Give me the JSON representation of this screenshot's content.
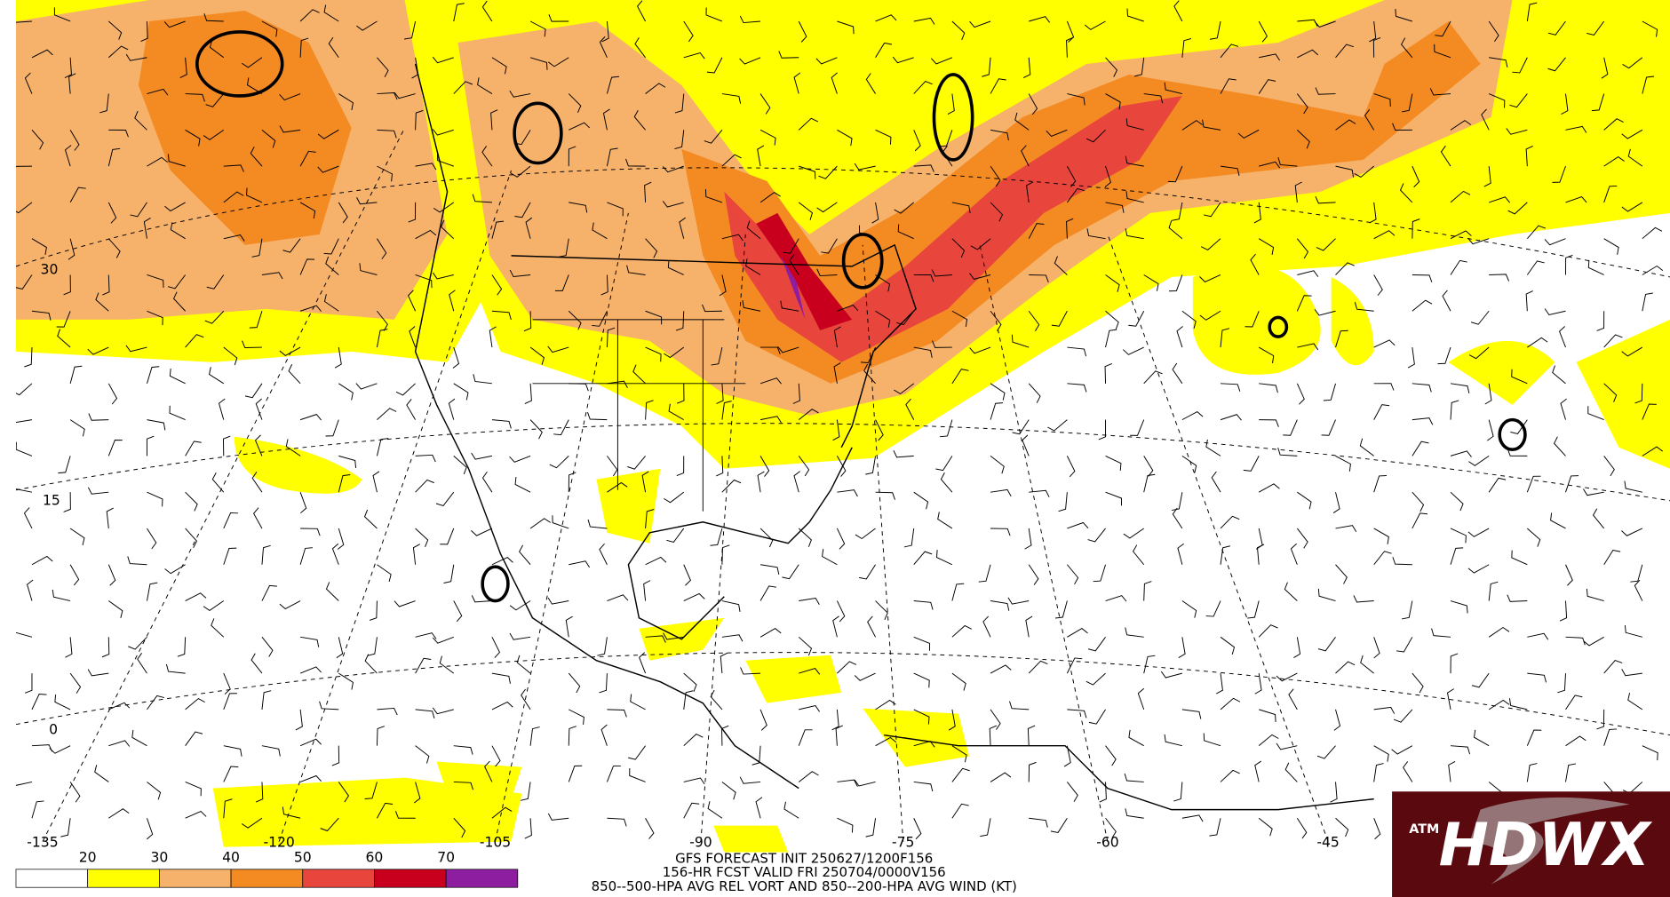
{
  "map": {
    "lat_labels": [
      "30",
      "15",
      "0"
    ],
    "lon_labels": [
      "-135",
      "-120",
      "-105",
      "-90",
      "-75",
      "-60",
      "-45"
    ],
    "legend": {
      "levels": [
        20,
        30,
        40,
        50,
        60,
        70
      ],
      "colors": [
        "#ffffff",
        "#ffff00",
        "#f6b26b",
        "#f38a22",
        "#e8453c",
        "#c8001e",
        "#8e1ea0"
      ]
    },
    "caption": [
      "GFS FORECAST INIT 250627/1200F156",
      "156-HR FCST VALID FRI 250704/0000V156",
      "850--500-HPA AVG REL VORT AND 850--200-HPA AVG WIND (KT)"
    ],
    "logo": "HDWX"
  }
}
